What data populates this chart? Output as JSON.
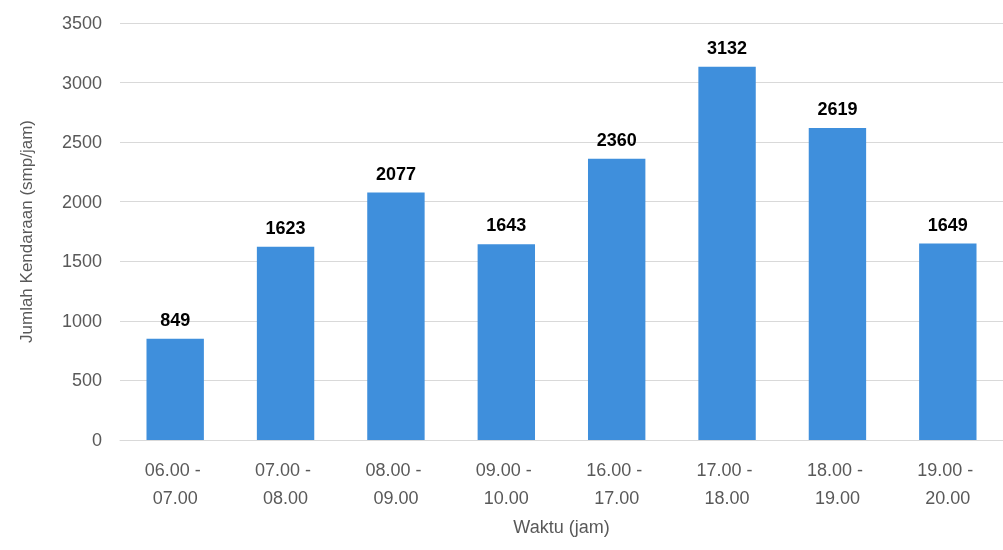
{
  "chart_data": {
    "type": "bar",
    "xlabel": "Waktu (jam)",
    "ylabel": "Jumlah Kendaraan (smp/jam)",
    "categories": [
      "06.00 - 07.00",
      "07.00 - 08.00",
      "08.00 - 09.00",
      "09.00 - 10.00",
      "16.00 - 17.00",
      "17.00 - 18.00",
      "18.00 - 19.00",
      "19.00 - 20.00"
    ],
    "values": [
      849,
      1623,
      2077,
      1643,
      2360,
      3132,
      2619,
      1649
    ],
    "color": "#3f8fdc",
    "ylim": [
      0,
      3500
    ],
    "yticks": [
      0,
      500,
      1000,
      1500,
      2000,
      2500,
      3000,
      3500
    ],
    "grid": "y",
    "data_labels": true
  }
}
